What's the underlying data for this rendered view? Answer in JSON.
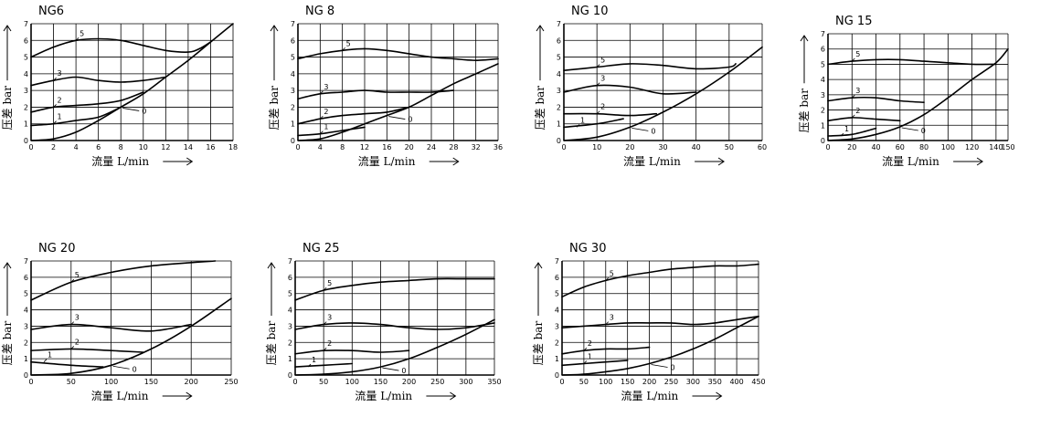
{
  "ylabel": "压差 bar",
  "xlabel_ng": [
    "流量 L/min",
    "流量 L/min",
    "流量 L/min",
    "流量 L/min",
    "流量 L/min",
    "流量 L/min",
    "流量 L/min"
  ],
  "chart_data": [
    {
      "type": "line",
      "title": "NG6",
      "xlim": [
        0,
        18
      ],
      "ylim": [
        0,
        7
      ],
      "xticks": [
        0,
        2,
        4,
        6,
        8,
        10,
        12,
        14,
        16,
        18
      ],
      "yticks": [
        0,
        1,
        2,
        3,
        4,
        5,
        6,
        7
      ],
      "grid": true,
      "series": [
        {
          "name": "5",
          "x": [
            0,
            2,
            4,
            6,
            8,
            10,
            12,
            14,
            15,
            16
          ],
          "y": [
            5.0,
            5.6,
            6.0,
            6.1,
            6.0,
            5.7,
            5.4,
            5.3,
            5.5,
            5.9
          ]
        },
        {
          "name": "3",
          "x": [
            0,
            2,
            4,
            6,
            8,
            10,
            12
          ],
          "y": [
            3.3,
            3.6,
            3.8,
            3.6,
            3.5,
            3.6,
            3.8
          ]
        },
        {
          "name": "2",
          "x": [
            0,
            2,
            4,
            6,
            8,
            10
          ],
          "y": [
            1.7,
            2.0,
            2.1,
            2.2,
            2.4,
            2.9
          ]
        },
        {
          "name": "1",
          "x": [
            0,
            2,
            4,
            6,
            8
          ],
          "y": [
            0.9,
            1.0,
            1.2,
            1.4,
            2.0
          ]
        },
        {
          "name": "0",
          "x": [
            0,
            2,
            4,
            6,
            8,
            10,
            12,
            14,
            16,
            18
          ],
          "y": [
            0,
            0.1,
            0.5,
            1.2,
            2.0,
            2.8,
            3.8,
            4.8,
            5.9,
            7.0
          ]
        }
      ]
    },
    {
      "type": "line",
      "title": "NG 8",
      "xlim": [
        0,
        36
      ],
      "ylim": [
        0,
        7
      ],
      "xticks": [
        0,
        4,
        8,
        12,
        16,
        20,
        24,
        28,
        32,
        36
      ],
      "yticks": [
        0,
        1,
        2,
        3,
        4,
        5,
        6,
        7
      ],
      "grid": true,
      "series": [
        {
          "name": "5",
          "x": [
            0,
            4,
            8,
            12,
            16,
            20,
            24,
            28,
            32,
            36
          ],
          "y": [
            4.9,
            5.2,
            5.4,
            5.5,
            5.4,
            5.2,
            5.0,
            4.9,
            4.8,
            4.9
          ]
        },
        {
          "name": "3",
          "x": [
            0,
            4,
            8,
            12,
            16,
            20,
            24,
            28
          ],
          "y": [
            2.5,
            2.8,
            2.9,
            3.0,
            2.9,
            2.9,
            2.9,
            3.0
          ]
        },
        {
          "name": "2",
          "x": [
            0,
            4,
            8,
            12,
            16,
            20
          ],
          "y": [
            1.0,
            1.3,
            1.5,
            1.6,
            1.7,
            2.0
          ]
        },
        {
          "name": "1",
          "x": [
            0,
            4,
            8,
            12
          ],
          "y": [
            0.3,
            0.4,
            0.6,
            0.8
          ]
        },
        {
          "name": "0",
          "x": [
            0,
            4,
            8,
            12,
            16,
            20,
            24,
            28,
            32,
            36
          ],
          "y": [
            0,
            0.1,
            0.5,
            1.0,
            1.5,
            2.0,
            2.7,
            3.4,
            4.0,
            4.6
          ]
        }
      ]
    },
    {
      "type": "line",
      "title": "NG 10",
      "xlim": [
        0,
        60
      ],
      "ylim": [
        0,
        7
      ],
      "xticks": [
        0,
        10,
        20,
        30,
        40,
        50,
        60
      ],
      "yticks": [
        0,
        1,
        2,
        3,
        4,
        5,
        6,
        7
      ],
      "grid": true,
      "series": [
        {
          "name": "5",
          "x": [
            0,
            10,
            20,
            30,
            40,
            50,
            52
          ],
          "y": [
            4.2,
            4.4,
            4.6,
            4.5,
            4.3,
            4.4,
            4.6
          ]
        },
        {
          "name": "3",
          "x": [
            0,
            10,
            20,
            30,
            40
          ],
          "y": [
            2.9,
            3.3,
            3.2,
            2.8,
            2.9
          ]
        },
        {
          "name": "2",
          "x": [
            0,
            10,
            20,
            28
          ],
          "y": [
            1.6,
            1.6,
            1.5,
            1.6
          ]
        },
        {
          "name": "1",
          "x": [
            0,
            10,
            18
          ],
          "y": [
            0.8,
            1.0,
            1.3
          ]
        },
        {
          "name": "0",
          "x": [
            0,
            10,
            20,
            30,
            40,
            50,
            60
          ],
          "y": [
            0,
            0.2,
            0.8,
            1.7,
            2.8,
            4.1,
            5.6
          ]
        }
      ]
    },
    {
      "type": "line",
      "title": "NG 15",
      "xlim": [
        0,
        150
      ],
      "ylim": [
        0,
        7
      ],
      "xticks": [
        0,
        20,
        40,
        60,
        80,
        100,
        120,
        140,
        150
      ],
      "yticks": [
        0,
        1,
        2,
        3,
        4,
        5,
        6,
        7
      ],
      "grid": true,
      "series": [
        {
          "name": "5",
          "x": [
            0,
            20,
            40,
            60,
            80,
            100,
            120,
            140
          ],
          "y": [
            5.0,
            5.2,
            5.3,
            5.3,
            5.2,
            5.1,
            5.0,
            5.0
          ]
        },
        {
          "name": "3",
          "x": [
            0,
            20,
            40,
            60,
            80
          ],
          "y": [
            2.6,
            2.8,
            2.8,
            2.6,
            2.5
          ]
        },
        {
          "name": "2",
          "x": [
            0,
            20,
            40,
            60
          ],
          "y": [
            1.3,
            1.5,
            1.4,
            1.3
          ]
        },
        {
          "name": "1",
          "x": [
            0,
            20,
            40
          ],
          "y": [
            0.3,
            0.4,
            0.8
          ]
        },
        {
          "name": "0",
          "x": [
            0,
            20,
            40,
            60,
            80,
            100,
            120,
            140,
            150
          ],
          "y": [
            0,
            0.1,
            0.4,
            0.9,
            1.7,
            2.8,
            4.0,
            5.1,
            6.0
          ]
        }
      ]
    },
    {
      "type": "line",
      "title": "NG 20",
      "xlim": [
        0,
        250
      ],
      "ylim": [
        0,
        7
      ],
      "xticks": [
        0,
        50,
        100,
        150,
        200,
        250
      ],
      "yticks": [
        0,
        1,
        2,
        3,
        4,
        5,
        6,
        7
      ],
      "grid": true,
      "series": [
        {
          "name": "5",
          "x": [
            0,
            50,
            100,
            150,
            200,
            230
          ],
          "y": [
            4.6,
            5.7,
            6.3,
            6.7,
            6.9,
            7.0
          ]
        },
        {
          "name": "3",
          "x": [
            0,
            50,
            100,
            150,
            200
          ],
          "y": [
            2.8,
            3.1,
            2.9,
            2.7,
            3.1
          ]
        },
        {
          "name": "2",
          "x": [
            0,
            50,
            100,
            140
          ],
          "y": [
            1.5,
            1.6,
            1.5,
            1.4
          ]
        },
        {
          "name": "1",
          "x": [
            0,
            50,
            90
          ],
          "y": [
            0.8,
            0.6,
            0.5
          ]
        },
        {
          "name": "0",
          "x": [
            0,
            50,
            100,
            150,
            200,
            250
          ],
          "y": [
            0,
            0.1,
            0.6,
            1.6,
            3.0,
            4.7
          ]
        }
      ]
    },
    {
      "type": "line",
      "title": "NG 25",
      "xlim": [
        0,
        350
      ],
      "ylim": [
        0,
        7
      ],
      "xticks": [
        0,
        50,
        100,
        150,
        200,
        250,
        300,
        350
      ],
      "yticks": [
        0,
        1,
        2,
        3,
        4,
        5,
        6,
        7
      ],
      "grid": true,
      "series": [
        {
          "name": "5",
          "x": [
            0,
            50,
            100,
            150,
            200,
            250,
            300,
            350
          ],
          "y": [
            4.6,
            5.2,
            5.5,
            5.7,
            5.8,
            5.9,
            5.9,
            5.9
          ]
        },
        {
          "name": "3",
          "x": [
            0,
            50,
            100,
            150,
            200,
            250,
            300,
            350
          ],
          "y": [
            2.8,
            3.1,
            3.2,
            3.1,
            2.9,
            2.8,
            2.9,
            3.2
          ]
        },
        {
          "name": "2",
          "x": [
            0,
            50,
            100,
            150,
            200
          ],
          "y": [
            1.3,
            1.5,
            1.5,
            1.4,
            1.5
          ]
        },
        {
          "name": "1",
          "x": [
            0,
            50,
            100
          ],
          "y": [
            0.5,
            0.6,
            0.7
          ]
        },
        {
          "name": "0",
          "x": [
            0,
            50,
            100,
            150,
            200,
            250,
            300,
            350
          ],
          "y": [
            0,
            0.05,
            0.2,
            0.5,
            1.0,
            1.7,
            2.5,
            3.4
          ]
        }
      ]
    },
    {
      "type": "line",
      "title": "NG 30",
      "xlim": [
        0,
        450
      ],
      "ylim": [
        0,
        7
      ],
      "xticks": [
        0,
        50,
        100,
        150,
        200,
        250,
        300,
        350,
        400,
        450
      ],
      "yticks": [
        0,
        1,
        2,
        3,
        4,
        5,
        6,
        7
      ],
      "grid": true,
      "series": [
        {
          "name": "5",
          "x": [
            0,
            50,
            100,
            150,
            200,
            250,
            300,
            350,
            400,
            450
          ],
          "y": [
            4.8,
            5.4,
            5.8,
            6.1,
            6.3,
            6.5,
            6.6,
            6.7,
            6.7,
            6.8
          ]
        },
        {
          "name": "3",
          "x": [
            0,
            50,
            100,
            150,
            200,
            250,
            300,
            350,
            400,
            450
          ],
          "y": [
            2.9,
            3.0,
            3.1,
            3.2,
            3.2,
            3.2,
            3.1,
            3.2,
            3.4,
            3.6
          ]
        },
        {
          "name": "2",
          "x": [
            0,
            50,
            100,
            150,
            200
          ],
          "y": [
            1.3,
            1.5,
            1.6,
            1.6,
            1.7
          ]
        },
        {
          "name": "1",
          "x": [
            0,
            50,
            100,
            150
          ],
          "y": [
            0.6,
            0.7,
            0.8,
            0.9
          ]
        },
        {
          "name": "0",
          "x": [
            0,
            50,
            100,
            150,
            200,
            250,
            300,
            350,
            400,
            450
          ],
          "y": [
            0,
            0.05,
            0.2,
            0.4,
            0.7,
            1.1,
            1.6,
            2.2,
            2.9,
            3.6
          ]
        }
      ]
    }
  ]
}
